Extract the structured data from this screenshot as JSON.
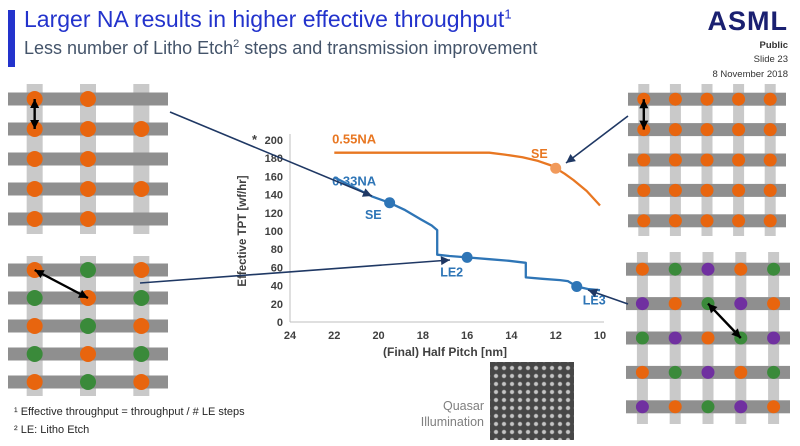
{
  "header": {
    "title": "Larger NA results in higher effective throughput",
    "title_superscript": "1",
    "subtitle_prefix": "Less number of Litho Etch",
    "subtitle_superscript": "2",
    "subtitle_suffix": " steps and transmission improvement"
  },
  "logo": {
    "brand": "ASML",
    "classification": "Public",
    "slide_label": "Slide 23",
    "date": "8 November 2018"
  },
  "footnotes": {
    "line1": "¹ Effective throughput = throughput / # LE steps",
    "line2": "² LE: Litho Etch"
  },
  "quasar": {
    "label_line1": "Quasar",
    "label_line2": "Illumination"
  },
  "colors": {
    "title_blue": "#2333CC",
    "subtitle_gray": "#44546A",
    "asml_blue": "#1A2071",
    "navy": "#1F3864",
    "axis_gray": "#404040",
    "label_gray": "#7F7F7F",
    "footnote_gray": "#262626",
    "bar_dark": "#8F8F8F",
    "bar_light": "#C9C9C9",
    "dot_orange": "#E8650E",
    "dot_green": "#3A8A3A",
    "dot_purple": "#7030A0"
  },
  "chart_data": {
    "type": "line",
    "title": "",
    "xlabel": "(Final) Half Pitch [nm]",
    "ylabel": "Effective TPT [wf/hr]",
    "ylabel_superscript": "*",
    "xlim": [
      24,
      10
    ],
    "ylim": [
      0,
      200
    ],
    "x_axis_reversed": true,
    "grid": false,
    "x_ticks": [
      24,
      22,
      20,
      18,
      16,
      14,
      12,
      10
    ],
    "y_ticks": [
      0,
      20,
      40,
      60,
      80,
      100,
      120,
      140,
      160,
      180,
      200
    ],
    "series": [
      {
        "name": "0.55NA",
        "color": "#E87722",
        "marker_fill": "#F19A5B",
        "label_at": [
          22.1,
          196
        ],
        "points": [
          [
            22,
            186
          ],
          [
            15,
            186
          ],
          [
            14.3,
            184
          ],
          [
            13.5,
            181
          ],
          [
            12.8,
            177
          ],
          [
            12.2,
            172
          ],
          [
            12,
            169
          ],
          [
            11.6,
            163
          ],
          [
            11.2,
            156
          ],
          [
            10.6,
            144
          ],
          [
            10,
            128
          ]
        ],
        "markers": [
          {
            "x": 12,
            "y": 169,
            "label": "SE",
            "dx": -8,
            "dy": -10,
            "anchor": "end"
          }
        ]
      },
      {
        "name": "0.33NA",
        "color": "#2E75B6",
        "marker_fill": "#2E75B6",
        "label_at": [
          22.1,
          150
        ],
        "points": [
          [
            22,
            159
          ],
          [
            21.2,
            149
          ],
          [
            20.3,
            138
          ],
          [
            19.5,
            131
          ],
          [
            18.8,
            123
          ],
          [
            18.1,
            113
          ],
          [
            17.6,
            106
          ],
          [
            17.35,
            101
          ],
          [
            17.35,
            74
          ],
          [
            16.8,
            72.5
          ],
          [
            16,
            71
          ],
          [
            15,
            69
          ],
          [
            14.2,
            67.5
          ],
          [
            13.35,
            65
          ],
          [
            13.35,
            49
          ],
          [
            12.6,
            47.5
          ],
          [
            11.8,
            46
          ],
          [
            11.45,
            45
          ],
          [
            11.05,
            39
          ],
          [
            10.5,
            36
          ],
          [
            10,
            35
          ]
        ],
        "markers": [
          {
            "x": 19.5,
            "y": 131,
            "label": "SE",
            "dx": -8,
            "dy": 16,
            "anchor": "end"
          },
          {
            "x": 16,
            "y": 71,
            "label": "LE2",
            "dx": -4,
            "dy": 19,
            "anchor": "end"
          },
          {
            "x": 11.05,
            "y": 39,
            "label": "LE3",
            "dx": 6,
            "dy": 18,
            "anchor": "start"
          }
        ]
      }
    ]
  },
  "patterns": {
    "top_left": {
      "rows": 5,
      "cols": 3,
      "dots": [
        "OO.",
        "OOO",
        "OO.",
        "OOO",
        "OO."
      ],
      "arrow": {
        "from": [
          0,
          0
        ],
        "to": [
          0,
          1
        ]
      }
    },
    "bottom_left": {
      "rows": 5,
      "cols": 3,
      "dots": [
        "OGO",
        "GOG",
        "OGO",
        "GOG",
        "OGO"
      ],
      "arrow": {
        "from": [
          0,
          0
        ],
        "to": [
          1,
          1
        ]
      }
    },
    "top_right": {
      "rows": 5,
      "cols": 5,
      "dots": [
        "OOOOO",
        "OOOOO",
        "OOOOO",
        "OOOOO",
        "OOOOO"
      ],
      "arrow": {
        "from": [
          0,
          0
        ],
        "to": [
          0,
          1
        ]
      }
    },
    "bottom_right": {
      "rows": 5,
      "cols": 5,
      "dots": [
        "OGPOG",
        "POGPO",
        "GPOGP",
        "OGPOG",
        "POGPO"
      ],
      "arrow": {
        "from": [
          2,
          1
        ],
        "to": [
          3,
          2
        ]
      }
    }
  }
}
